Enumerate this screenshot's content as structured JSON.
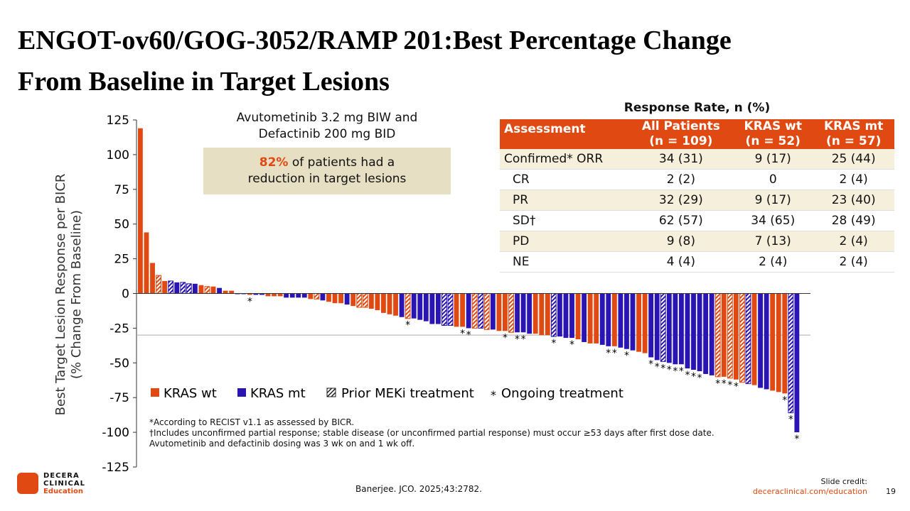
{
  "title": [
    "ENGOT-ov60/GOG-3052/RAMP 201:Best Percentage Change",
    "From Baseline in Target Lesions"
  ],
  "chart_data": {
    "type": "waterfall",
    "y_label": [
      "Best Target Lesion Response per BICR",
      "(% Change From Baseline)"
    ],
    "ylim": [
      -125,
      125
    ],
    "yticks": [
      125,
      100,
      75,
      50,
      25,
      0,
      -25,
      -50,
      -75,
      -100,
      -125
    ],
    "reference_line": -30,
    "series": [
      {
        "name": "KRAS wt",
        "color": "#e04a12",
        "values": [
          119,
          44,
          22,
          13,
          9,
          null,
          null,
          null,
          null,
          null,
          6,
          5,
          5,
          null,
          2,
          2,
          null,
          null,
          -1,
          null,
          null,
          -2,
          -2,
          -2,
          null,
          null,
          null,
          null,
          -4,
          -4,
          null,
          -6,
          -7,
          -7,
          null,
          -9,
          -10,
          -10,
          -11,
          -12,
          -14,
          -15,
          -16,
          null,
          -18,
          null,
          null,
          null,
          null,
          null,
          null,
          null,
          -24,
          -24,
          null,
          -25,
          null,
          -26,
          null,
          -27,
          -27,
          -28,
          null,
          null,
          null,
          -29,
          -30,
          -30,
          null,
          null,
          null,
          null,
          -33,
          null,
          -36,
          -36,
          null,
          null,
          -38,
          null,
          null,
          null,
          -42,
          -43,
          null,
          null,
          null,
          null,
          null,
          null,
          null,
          null,
          null,
          null,
          null,
          -60,
          -60,
          -61,
          -62,
          -64,
          null,
          -66,
          null,
          null,
          -70,
          -71,
          -72,
          null,
          null
        ]
      },
      {
        "name": "KRAS mt",
        "color": "#2a14b4",
        "values": [
          null,
          null,
          null,
          null,
          null,
          9,
          8,
          8,
          7,
          7,
          null,
          null,
          null,
          4,
          null,
          null,
          0,
          0,
          null,
          -1,
          -1,
          null,
          null,
          null,
          -3,
          -3,
          -3,
          -3,
          null,
          null,
          -5,
          null,
          null,
          null,
          -8,
          null,
          null,
          null,
          null,
          null,
          null,
          null,
          null,
          -17,
          null,
          -18,
          -19,
          -20,
          -22,
          -22,
          -23,
          -23,
          null,
          null,
          -25,
          null,
          -25,
          null,
          -26,
          null,
          null,
          null,
          -28,
          -28,
          -29,
          null,
          null,
          null,
          -31,
          -31,
          -32,
          -32,
          null,
          -35,
          null,
          null,
          -37,
          -38,
          null,
          -39,
          -40,
          -41,
          null,
          null,
          -46,
          -48,
          -49,
          -50,
          -51,
          -51,
          -54,
          -55,
          -56,
          -58,
          -59,
          null,
          null,
          null,
          null,
          null,
          -65,
          null,
          -68,
          -69,
          null,
          null,
          null,
          -86,
          -100
        ]
      }
    ],
    "prior_meki": [
      false,
      false,
      false,
      true,
      false,
      true,
      false,
      true,
      true,
      false,
      false,
      true,
      false,
      false,
      false,
      false,
      false,
      false,
      false,
      false,
      false,
      false,
      false,
      false,
      false,
      false,
      false,
      false,
      false,
      true,
      false,
      false,
      false,
      false,
      false,
      false,
      true,
      true,
      false,
      false,
      false,
      false,
      false,
      false,
      true,
      false,
      false,
      false,
      false,
      false,
      true,
      true,
      false,
      false,
      false,
      true,
      true,
      true,
      false,
      false,
      false,
      true,
      false,
      false,
      false,
      false,
      false,
      false,
      true,
      false,
      false,
      false,
      false,
      false,
      false,
      false,
      false,
      false,
      false,
      false,
      false,
      false,
      false,
      false,
      false,
      false,
      true,
      false,
      false,
      false,
      false,
      false,
      false,
      false,
      false,
      true,
      false,
      true,
      false,
      true,
      true,
      false,
      false,
      false,
      false,
      false,
      false,
      true,
      false
    ],
    "ongoing": [
      false,
      false,
      false,
      false,
      false,
      false,
      false,
      false,
      false,
      false,
      false,
      false,
      false,
      false,
      false,
      false,
      false,
      false,
      true,
      false,
      false,
      false,
      false,
      false,
      false,
      false,
      false,
      false,
      false,
      false,
      false,
      false,
      false,
      false,
      false,
      false,
      false,
      false,
      false,
      false,
      false,
      false,
      false,
      false,
      true,
      false,
      false,
      false,
      false,
      false,
      false,
      false,
      false,
      true,
      true,
      false,
      false,
      false,
      false,
      false,
      true,
      false,
      true,
      true,
      false,
      false,
      false,
      false,
      true,
      false,
      false,
      true,
      false,
      false,
      false,
      false,
      false,
      true,
      true,
      false,
      true,
      false,
      false,
      false,
      true,
      true,
      true,
      true,
      true,
      true,
      true,
      true,
      true,
      false,
      false,
      true,
      true,
      true,
      true,
      false,
      false,
      false,
      false,
      false,
      false,
      false,
      true,
      true,
      true
    ],
    "legend_extra": [
      {
        "label": "Prior MEKi treatment"
      },
      {
        "symbol": "*",
        "label": "Ongoing treatment"
      }
    ]
  },
  "note_box": {
    "lines": [
      "Avutometinib 3.2 mg BIW and",
      "Defactinib 200 mg BID"
    ],
    "highlight": "82%",
    "text": [
      "of patients had a",
      "reduction in target lesions"
    ]
  },
  "table": {
    "title": "Response Rate, n (%)",
    "header": [
      [
        "Assessment"
      ],
      [
        "All Patients",
        "(n = 109)"
      ],
      [
        "KRAS wt",
        "(n = 52)"
      ],
      [
        "KRAS mt",
        "(n = 57)"
      ]
    ],
    "rows": [
      [
        "Confirmed* ORR",
        "34 (31)",
        "9 (17)",
        "25 (44)"
      ],
      [
        "CR",
        "2 (2)",
        "0",
        "2 (4)"
      ],
      [
        "PR",
        "32 (29)",
        "9 (17)",
        "23 (40)"
      ],
      [
        "SD†",
        "62 (57)",
        "34 (65)",
        "28 (49)"
      ],
      [
        "PD",
        "9 (8)",
        "7 (13)",
        "2 (4)"
      ],
      [
        "NE",
        "4 (4)",
        "2 (4)",
        "2 (4)"
      ]
    ]
  },
  "footnotes": [
    "*According to RECIST v1.1 as assessed by BICR.",
    "†Includes unconfirmed partial response; stable disease (or unconfirmed partial response) must occur ≥53 days after first dose date.",
    "Avutometinib and defactinib dosing was 3 wk on and 1 wk off."
  ],
  "citation": "Banerjee. JCO. 2025;43:2782.",
  "logo": [
    "DECERA",
    "CLINICAL",
    "Education"
  ],
  "credit": [
    "Slide credit:",
    "deceraclinical.com/education"
  ],
  "page": "19"
}
